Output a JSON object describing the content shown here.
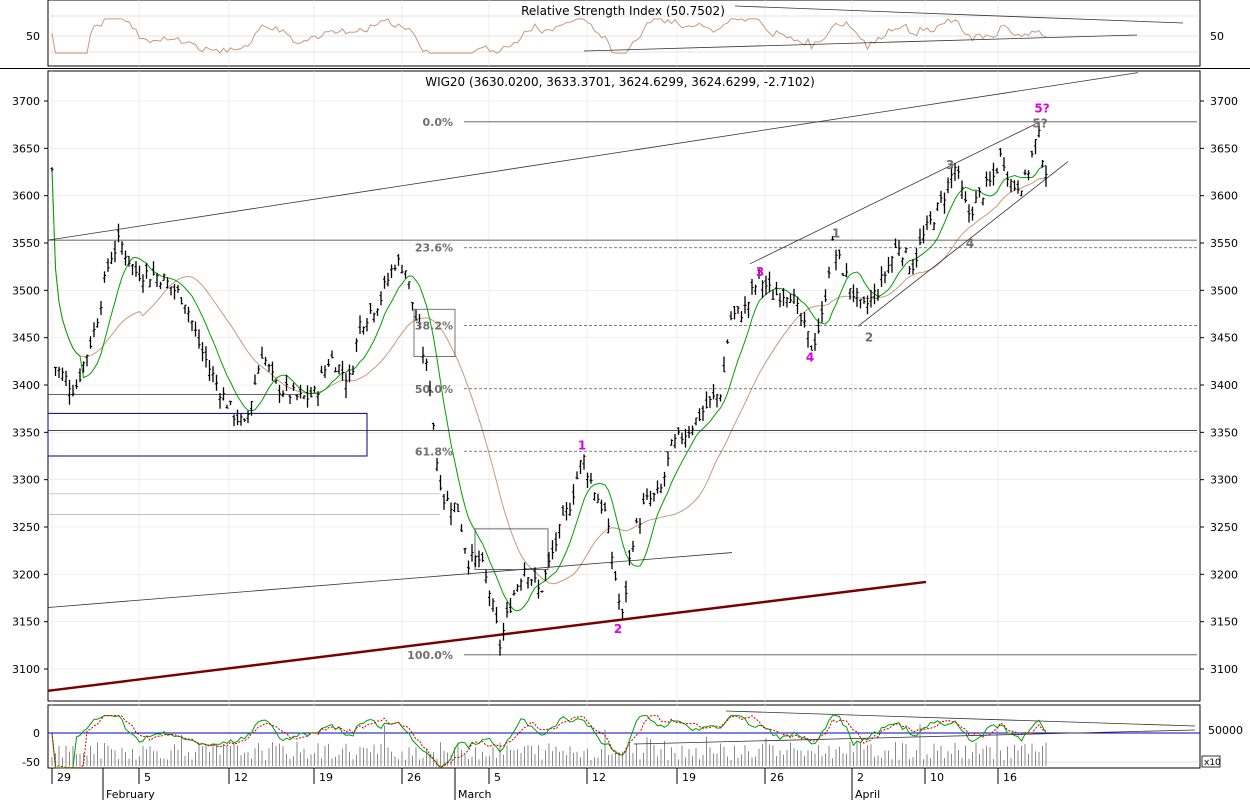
{
  "colors": {
    "price_bar": "#000000",
    "ma_short": "#00a000",
    "ma_long": "#c89a7a",
    "wave_primary": "#e000e0",
    "wave_secondary": "#707070",
    "trend_heavy": "#7a0000",
    "zone_box": "#000080",
    "oscillator_zero": "#0000c0",
    "oscillator_signal": "#d00000"
  },
  "chart_data": [
    {
      "type": "line",
      "panel": "rsi",
      "title": "Relative Strength Index (50.7502)",
      "current_value": 50.7502,
      "y_tick_labels": [
        "50"
      ],
      "ylim": [
        30,
        70
      ],
      "grid": true
    },
    {
      "type": "candlestick",
      "panel": "price",
      "title": "WIG20 (3630.0200, 3633.3701, 3624.6299, 3624.6299, -2.7102)",
      "last_ohlc": {
        "open": 3630.02,
        "high": 3633.3701,
        "low": 3624.6299,
        "close": 3624.6299,
        "change": -2.7102
      },
      "y_tick_labels": [
        "3700",
        "3650",
        "3600",
        "3550",
        "3500",
        "3450",
        "3400",
        "3350",
        "3300",
        "3250",
        "3200",
        "3150",
        "3100"
      ],
      "ylim": [
        3070,
        3730
      ],
      "x_day_labels": [
        "29",
        "5",
        "12",
        "19",
        "26",
        "5",
        "12",
        "19",
        "26",
        "2",
        "10",
        "16"
      ],
      "x_month_labels": [
        "February",
        "March",
        "April"
      ],
      "fibonacci": [
        {
          "label": "0.0%",
          "value": 3678
        },
        {
          "label": "23.6%",
          "value": 3545
        },
        {
          "label": "38.2%",
          "value": 3463
        },
        {
          "label": "50.0%",
          "value": 3396
        },
        {
          "label": "61.8%",
          "value": 3330
        },
        {
          "label": "100.0%",
          "value": 3115
        }
      ],
      "wave_labels_primary": [
        "1",
        "2",
        "3",
        "4",
        "5?"
      ],
      "wave_labels_secondary": [
        "1",
        "2",
        "3",
        "4",
        "5?"
      ],
      "grid": true
    },
    {
      "type": "line",
      "panel": "oscillator",
      "y_tick_labels": [
        "0",
        "-50"
      ],
      "volume_tick_label": "50000",
      "volume_multiplier_label": "x10",
      "grid": true
    }
  ]
}
